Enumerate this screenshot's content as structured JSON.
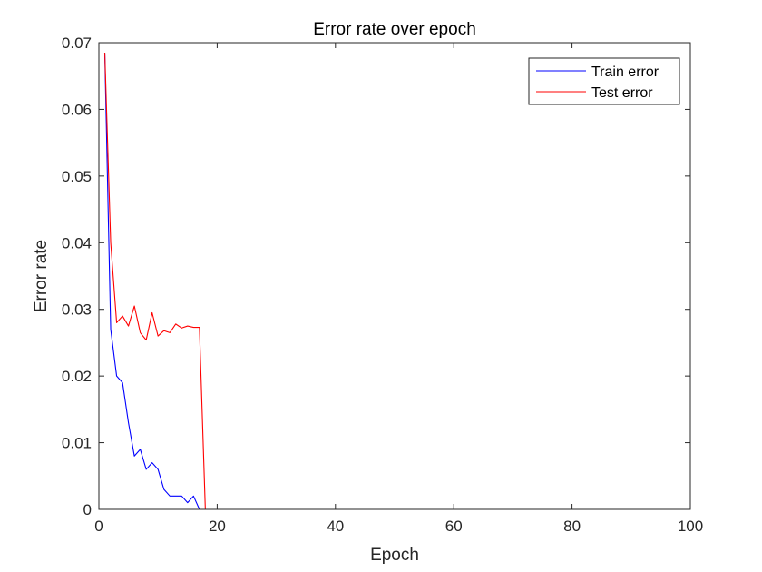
{
  "chart_data": {
    "type": "line",
    "title": "Error rate over epoch",
    "xlabel": "Epoch",
    "ylabel": "Error rate",
    "xlim": [
      0,
      100
    ],
    "ylim": [
      0,
      0.07
    ],
    "xticks": [
      0,
      20,
      40,
      60,
      80,
      100
    ],
    "yticks": [
      0,
      0.01,
      0.02,
      0.03,
      0.04,
      0.05,
      0.06,
      0.07
    ],
    "xtick_labels": [
      "0",
      "20",
      "40",
      "60",
      "80",
      "100"
    ],
    "ytick_labels": [
      "0",
      "0.01",
      "0.02",
      "0.03",
      "0.04",
      "0.05",
      "0.06",
      "0.07"
    ],
    "grid": false,
    "legend_position": "top-right",
    "series": [
      {
        "name": "Train error",
        "color": "#0000ff",
        "x": [
          1,
          2,
          3,
          4,
          5,
          6,
          7,
          8,
          9,
          10,
          11,
          12,
          13,
          14,
          15,
          16,
          17,
          18,
          19,
          20,
          21,
          22,
          23,
          24,
          25,
          26,
          27,
          28,
          29,
          30,
          31,
          32,
          33,
          34,
          35,
          36,
          37,
          38,
          39,
          40,
          41,
          42,
          43,
          44,
          45,
          46,
          47,
          48,
          49,
          50,
          51,
          52,
          53,
          54,
          55,
          56,
          57,
          58,
          59,
          60,
          61,
          62,
          63,
          64,
          65,
          66,
          67,
          68,
          69,
          70,
          71,
          72,
          73,
          74,
          75,
          76,
          77,
          78,
          79,
          80,
          81,
          82,
          83,
          84,
          85,
          86,
          87,
          88,
          89,
          90,
          91,
          92,
          93,
          94,
          95,
          96,
          97,
          98,
          99,
          100
        ],
        "values": [
          0.0685,
          0.027,
          0.02,
          0.019,
          0.013,
          0.008,
          0.009,
          0.006,
          0.007,
          0.006,
          0.003,
          0.002,
          0.002,
          0.002,
          0.001,
          0.002,
          0,
          0,
          0,
          0,
          0,
          0,
          0,
          0,
          0,
          0,
          0,
          0,
          0,
          0,
          0,
          0,
          0,
          0,
          0,
          0,
          0,
          0,
          0,
          0,
          0,
          0,
          0,
          0,
          0,
          0,
          0,
          0,
          0,
          0,
          0,
          0,
          0,
          0,
          0,
          0,
          0,
          0,
          0,
          0,
          0,
          0,
          0,
          0,
          0,
          0,
          0,
          0,
          0,
          0,
          0,
          0,
          0,
          0,
          0,
          0,
          0,
          0,
          0,
          0,
          0,
          0,
          0,
          0,
          0,
          0,
          0,
          0,
          0,
          0,
          0,
          0,
          0,
          0,
          0,
          0,
          0,
          0,
          0,
          0
        ]
      },
      {
        "name": "Test error",
        "color": "#ff0000",
        "x": [
          1,
          2,
          3,
          4,
          5,
          6,
          7,
          8,
          9,
          10,
          11,
          12,
          13,
          14,
          15,
          16,
          17,
          18,
          19,
          20,
          21,
          22,
          23,
          24,
          25,
          26,
          27,
          28,
          29,
          30,
          31,
          32,
          33,
          34,
          35,
          36,
          37,
          38,
          39,
          40,
          41,
          42,
          43,
          44,
          45,
          46,
          47,
          48,
          49,
          50,
          51,
          52,
          53,
          54,
          55,
          56,
          57,
          58,
          59,
          60,
          61,
          62,
          63,
          64,
          65,
          66,
          67,
          68,
          69,
          70,
          71,
          72,
          73,
          74,
          75,
          76,
          77,
          78,
          79,
          80,
          81,
          82,
          83,
          84,
          85,
          86,
          87,
          88,
          89,
          90,
          91,
          92,
          93,
          94,
          95,
          96,
          97,
          98,
          99,
          100
        ],
        "values": [
          0.0685,
          0.04,
          0.028,
          0.029,
          0.0275,
          0.0305,
          0.0265,
          0.0254,
          0.0295,
          0.026,
          0.0268,
          0.0265,
          0.0278,
          0.0272,
          0.0275,
          0.0273,
          0.0273,
          0,
          0,
          0,
          0,
          0,
          0,
          0,
          0,
          0,
          0,
          0,
          0,
          0,
          0,
          0,
          0,
          0,
          0,
          0,
          0,
          0,
          0,
          0,
          0,
          0,
          0,
          0,
          0,
          0,
          0,
          0,
          0,
          0,
          0,
          0,
          0,
          0,
          0,
          0,
          0,
          0,
          0,
          0,
          0,
          0,
          0,
          0,
          0,
          0,
          0,
          0,
          0,
          0,
          0,
          0,
          0,
          0,
          0,
          0,
          0,
          0,
          0,
          0,
          0,
          0,
          0,
          0,
          0,
          0,
          0,
          0,
          0,
          0,
          0,
          0,
          0,
          0,
          0,
          0,
          0,
          0,
          0,
          0
        ]
      }
    ]
  }
}
